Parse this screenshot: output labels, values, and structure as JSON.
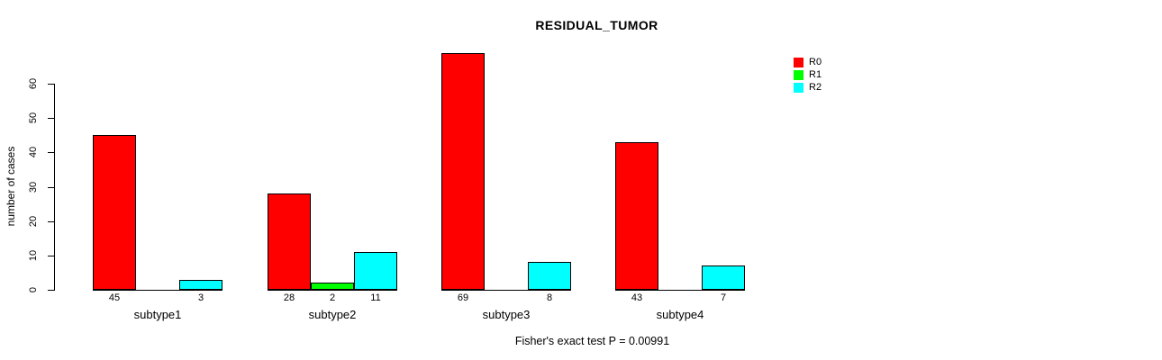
{
  "chart_data": {
    "type": "bar",
    "title": "RESIDUAL_TUMOR",
    "xlabel": "",
    "ylabel": "number of cases",
    "annotation": "Fisher's exact test P = 0.00991",
    "categories": [
      "subtype1",
      "subtype2",
      "subtype3",
      "subtype4"
    ],
    "series": [
      {
        "name": "R0",
        "color": "#FF0000",
        "values": [
          45,
          28,
          69,
          43
        ]
      },
      {
        "name": "R1",
        "color": "#00FF00",
        "values": [
          0,
          2,
          0,
          0
        ]
      },
      {
        "name": "R2",
        "color": "#00FFFF",
        "values": [
          3,
          11,
          8,
          7
        ]
      }
    ],
    "value_label_rule": "value printed under bar only when greater than 0",
    "yticks": [
      0,
      10,
      20,
      30,
      40,
      50,
      60
    ],
    "ylim": [
      0,
      60
    ],
    "grid": false,
    "legend_position": "top-right",
    "bar_border_color": "#000000",
    "background_color": "#FFFFFF",
    "text_color": "#000000"
  }
}
